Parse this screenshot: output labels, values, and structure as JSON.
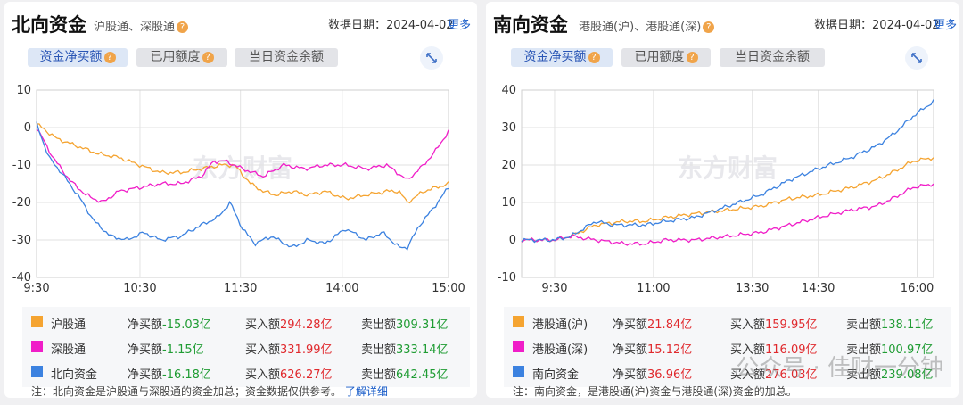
{
  "north": {
    "title": "北向资金",
    "subtitle": "沪股通、深股通",
    "date_label": "数据日期：2024-04-02",
    "more": "更多",
    "tabs": [
      "资金净买额",
      "已用额度",
      "当日资金余额"
    ],
    "legend": [
      {
        "name": "沪股通",
        "net_label": "净买额",
        "net": "-15.03亿",
        "buy_label": "买入额",
        "buy": "294.28亿",
        "sell_label": "卖出额",
        "sell": "309.31亿"
      },
      {
        "name": "深股通",
        "net_label": "净买额",
        "net": "-1.15亿",
        "buy_label": "买入额",
        "buy": "331.99亿",
        "sell_label": "卖出额",
        "sell": "333.14亿"
      },
      {
        "name": "北向资金",
        "net_label": "净买额",
        "net": "-16.18亿",
        "buy_label": "买入额",
        "buy": "626.27亿",
        "sell_label": "卖出额",
        "sell": "642.45亿"
      }
    ],
    "note": "注：北向资金是沪股通与深股通的资金加总；资金数据仅供参考。",
    "note_link": "了解详细"
  },
  "south": {
    "title": "南向资金",
    "subtitle": "港股通(沪)、港股通(深)",
    "date_label": "数据日期：2024-04-02",
    "more": "更多",
    "tabs": [
      "资金净买额",
      "已用额度",
      "当日资金余额"
    ],
    "legend": [
      {
        "name": "港股通(沪)",
        "net_label": "净买额",
        "net": "21.84亿",
        "buy_label": "买入额",
        "buy": "159.95亿",
        "sell_label": "卖出额",
        "sell": "138.11亿"
      },
      {
        "name": "港股通(深)",
        "net_label": "净买额",
        "net": "15.12亿",
        "buy_label": "买入额",
        "buy": "116.09亿",
        "sell_label": "卖出额",
        "sell": "100.97亿"
      },
      {
        "name": "南向资金",
        "net_label": "净买额",
        "net": "36.96亿",
        "buy_label": "买入额",
        "buy": "276.03亿",
        "sell_label": "卖出额",
        "sell": "239.08亿"
      }
    ],
    "note": "注：南向资金，是港股通(沪)资金与港股通(深)资金的加总。"
  },
  "watermark": "公众号 · 佳财一分钟",
  "chart_watermark": "东方财富",
  "icons": {
    "help": "question-icon",
    "expand": "expand-icon"
  },
  "colors": {
    "series1": "#f5a431",
    "series2": "#f01ec8",
    "series3": "#3c82e0",
    "up": "#e0292d",
    "down": "#1f9c33",
    "accent": "#2a56b5"
  },
  "chart_data": [
    {
      "type": "line",
      "x_ticks": [
        "9:30",
        "10:30",
        "11:30",
        "14:00",
        "15:00"
      ],
      "ylim": [
        -40,
        10
      ],
      "y_ticks": [
        10,
        0,
        -10,
        -20,
        -30,
        -40
      ],
      "grid": true,
      "series": [
        {
          "name": "沪股通",
          "color": "#f5a431",
          "x": [
            0,
            0.05,
            0.1,
            0.15,
            0.2,
            0.25,
            0.3,
            0.35,
            0.4,
            0.45,
            0.48,
            0.52,
            0.55,
            0.58,
            0.62,
            0.66,
            0.7,
            0.75,
            0.8,
            0.85,
            0.88,
            0.9,
            0.94,
            0.97,
            1
          ],
          "y": [
            1,
            -3,
            -5,
            -7,
            -8,
            -10,
            -12,
            -12,
            -11,
            -10,
            -10,
            -15,
            -17,
            -18,
            -17,
            -18,
            -17,
            -19,
            -18,
            -17,
            -17,
            -20,
            -17,
            -16,
            -15
          ]
        },
        {
          "name": "深股通",
          "color": "#f01ec8",
          "x": [
            0,
            0.04,
            0.08,
            0.12,
            0.16,
            0.2,
            0.25,
            0.3,
            0.35,
            0.4,
            0.43,
            0.46,
            0.5,
            0.55,
            0.6,
            0.65,
            0.7,
            0.75,
            0.8,
            0.85,
            0.9,
            0.94,
            0.97,
            1
          ],
          "y": [
            0,
            -8,
            -14,
            -18,
            -20,
            -17,
            -16,
            -15,
            -15,
            -13,
            -9,
            -9,
            -11,
            -13,
            -10,
            -11,
            -10,
            -10,
            -11,
            -10,
            -14,
            -10,
            -6,
            -1
          ]
        },
        {
          "name": "北向资金",
          "color": "#3c82e0",
          "x": [
            0,
            0.03,
            0.06,
            0.1,
            0.14,
            0.18,
            0.22,
            0.26,
            0.3,
            0.35,
            0.4,
            0.44,
            0.47,
            0.5,
            0.53,
            0.57,
            0.62,
            0.66,
            0.7,
            0.75,
            0.8,
            0.84,
            0.88,
            0.9,
            0.93,
            0.96,
            1
          ],
          "y": [
            1,
            -8,
            -12,
            -18,
            -25,
            -29,
            -30,
            -28,
            -30,
            -29,
            -26,
            -24,
            -20,
            -27,
            -31,
            -29,
            -32,
            -30,
            -31,
            -27,
            -30,
            -28,
            -32,
            -32,
            -26,
            -22,
            -16
          ]
        }
      ]
    },
    {
      "type": "line",
      "x_ticks": [
        "9:30",
        "11:00",
        "13:30",
        "14:30",
        "16:00"
      ],
      "ylim": [
        -10,
        40
      ],
      "y_ticks": [
        40,
        30,
        20,
        10,
        0,
        -10
      ],
      "grid": true,
      "series": [
        {
          "name": "港股通(沪)",
          "color": "#f5a431",
          "x": [
            0,
            0.08,
            0.12,
            0.18,
            0.25,
            0.3,
            0.35,
            0.42,
            0.5,
            0.58,
            0.65,
            0.72,
            0.8,
            0.86,
            0.9,
            0.95,
            1
          ],
          "y": [
            0,
            0,
            1,
            4,
            5,
            5,
            6,
            7,
            8,
            9,
            11,
            12,
            14,
            16,
            18,
            21,
            22
          ]
        },
        {
          "name": "港股通(深)",
          "color": "#f01ec8",
          "x": [
            0,
            0.08,
            0.12,
            0.18,
            0.25,
            0.3,
            0.35,
            0.42,
            0.5,
            0.58,
            0.65,
            0.72,
            0.8,
            0.86,
            0.9,
            0.95,
            1
          ],
          "y": [
            0,
            0,
            1,
            0,
            -1,
            -1,
            0,
            0,
            1,
            2,
            4,
            6,
            8,
            9,
            11,
            14,
            15
          ]
        },
        {
          "name": "南向资金",
          "color": "#3c82e0",
          "x": [
            0,
            0.08,
            0.12,
            0.18,
            0.22,
            0.25,
            0.3,
            0.35,
            0.42,
            0.5,
            0.58,
            0.65,
            0.72,
            0.8,
            0.86,
            0.9,
            0.95,
            1
          ],
          "y": [
            0,
            0,
            1,
            5,
            4,
            4,
            4,
            5,
            6,
            9,
            12,
            16,
            19,
            22,
            25,
            28,
            33,
            37
          ]
        }
      ]
    }
  ]
}
